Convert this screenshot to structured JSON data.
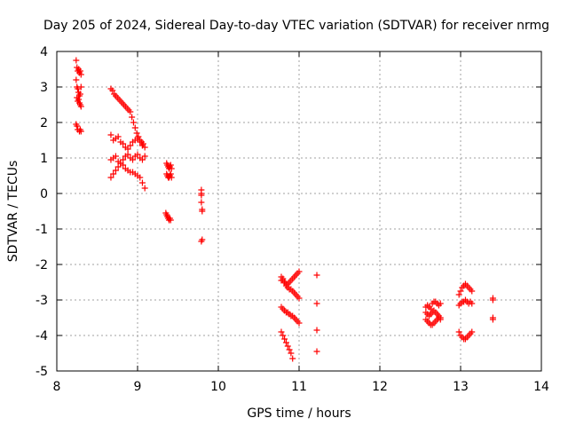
{
  "chart_data": {
    "type": "scatter",
    "title": "Day 205 of 2024, Sidereal Day-to-day VTEC variation (SDTVAR) for receiver nrmg",
    "xlabel": "GPS time / hours",
    "ylabel": "SDTVAR / TECUs",
    "xlim": [
      8,
      14
    ],
    "ylim": [
      -5,
      4
    ],
    "xticks": [
      "8",
      "9",
      "10",
      "11",
      "12",
      "13",
      "14"
    ],
    "yticks": [
      "4",
      "3",
      "2",
      "1",
      "0",
      "-1",
      "-2",
      "-3",
      "-4",
      "-5"
    ],
    "grid": true,
    "marker": "+",
    "color": "#ff0000",
    "series": [
      {
        "name": "SDTVAR",
        "x": [
          8.24,
          8.25,
          8.26,
          8.27,
          8.28,
          8.29,
          8.3,
          8.24,
          8.25,
          8.26,
          8.27,
          8.28,
          8.29,
          8.3,
          8.25,
          8.26,
          8.27,
          8.28,
          8.29,
          8.3,
          8.24,
          8.25,
          8.26,
          8.28,
          8.29,
          8.3,
          8.67,
          8.69,
          8.71,
          8.73,
          8.75,
          8.77,
          8.79,
          8.81,
          8.83,
          8.85,
          8.87,
          8.89,
          8.91,
          8.93,
          8.95,
          8.97,
          8.99,
          9.01,
          9.03,
          9.05,
          9.07,
          8.67,
          8.7,
          8.73,
          8.76,
          8.79,
          8.82,
          8.85,
          8.88,
          8.91,
          8.94,
          8.97,
          9.0,
          9.03,
          9.06,
          9.09,
          8.67,
          8.7,
          8.73,
          8.76,
          8.79,
          8.82,
          8.85,
          8.88,
          8.91,
          8.94,
          8.97,
          9.0,
          9.03,
          9.06,
          9.09,
          8.67,
          8.7,
          8.73,
          8.76,
          8.79,
          8.82,
          8.85,
          8.88,
          8.91,
          8.94,
          8.97,
          9.0,
          9.03,
          9.06,
          9.09,
          9.36,
          9.37,
          9.38,
          9.39,
          9.4,
          9.41,
          9.42,
          9.36,
          9.37,
          9.38,
          9.39,
          9.4,
          9.41,
          9.42,
          9.35,
          9.36,
          9.37,
          9.38,
          9.39,
          9.4,
          9.41,
          9.79,
          9.79,
          9.79,
          9.79,
          9.8,
          9.8,
          9.8,
          9.79,
          10.78,
          10.8,
          10.82,
          10.84,
          10.86,
          10.88,
          10.9,
          10.92,
          10.94,
          10.96,
          10.98,
          11.0,
          10.78,
          10.8,
          10.82,
          10.84,
          10.86,
          10.88,
          10.9,
          10.92,
          10.94,
          10.96,
          10.98,
          11.0,
          10.78,
          10.8,
          10.82,
          10.84,
          10.86,
          10.88,
          10.9,
          10.92,
          10.94,
          10.96,
          10.98,
          11.0,
          10.78,
          10.8,
          10.82,
          10.84,
          10.86,
          10.88,
          10.9,
          10.92,
          11.22,
          11.22,
          11.22,
          11.22,
          12.57,
          12.59,
          12.61,
          12.63,
          12.65,
          12.67,
          12.69,
          12.71,
          12.73,
          12.75,
          12.57,
          12.59,
          12.61,
          12.63,
          12.65,
          12.67,
          12.69,
          12.71,
          12.73,
          12.75,
          12.57,
          12.59,
          12.61,
          12.63,
          12.65,
          12.67,
          12.69,
          12.71,
          12.73,
          12.75,
          12.98,
          13.0,
          13.02,
          13.04,
          13.06,
          13.08,
          13.1,
          13.12,
          13.14,
          12.98,
          13.0,
          13.02,
          13.04,
          13.06,
          13.08,
          13.1,
          13.12,
          13.14,
          12.98,
          13.0,
          13.02,
          13.04,
          13.06,
          13.08,
          13.1,
          13.12,
          13.14,
          13.4,
          13.4,
          13.4,
          13.4
        ],
        "y": [
          3.75,
          3.55,
          3.45,
          3.5,
          3.4,
          3.45,
          3.35,
          3.2,
          3.0,
          2.95,
          2.85,
          2.75,
          2.8,
          3.0,
          2.7,
          2.6,
          2.65,
          2.55,
          2.5,
          2.45,
          1.95,
          1.9,
          1.8,
          1.75,
          1.8,
          1.75,
          2.95,
          2.9,
          2.8,
          2.75,
          2.7,
          2.65,
          2.6,
          2.55,
          2.5,
          2.45,
          2.4,
          2.35,
          2.3,
          2.15,
          2.0,
          1.85,
          1.7,
          1.6,
          1.5,
          1.45,
          1.4,
          1.65,
          1.5,
          1.55,
          1.6,
          1.45,
          1.4,
          1.3,
          1.25,
          1.35,
          1.45,
          1.5,
          1.55,
          1.45,
          1.35,
          1.3,
          0.95,
          1.0,
          1.05,
          0.9,
          0.85,
          0.95,
          1.05,
          1.1,
          1.0,
          0.95,
          1.05,
          1.1,
          1.0,
          0.95,
          1.05,
          0.45,
          0.55,
          0.65,
          0.75,
          0.85,
          0.8,
          0.7,
          0.65,
          0.6,
          0.6,
          0.55,
          0.5,
          0.45,
          0.3,
          0.15,
          0.85,
          0.8,
          0.75,
          0.7,
          0.75,
          0.8,
          0.7,
          0.55,
          0.5,
          0.45,
          0.45,
          0.5,
          0.55,
          0.45,
          -0.55,
          -0.6,
          -0.65,
          -0.7,
          -0.75,
          -0.7,
          -0.75,
          0.1,
          0.0,
          -0.05,
          -0.25,
          -0.45,
          -0.5,
          -1.3,
          -1.35,
          -2.35,
          -2.45,
          -2.5,
          -2.55,
          -2.55,
          -2.5,
          -2.45,
          -2.4,
          -2.35,
          -2.3,
          -2.25,
          -2.2,
          -2.45,
          -2.4,
          -2.5,
          -2.6,
          -2.65,
          -2.7,
          -2.7,
          -2.75,
          -2.8,
          -2.85,
          -2.9,
          -2.95,
          -3.2,
          -3.25,
          -3.3,
          -3.35,
          -3.35,
          -3.4,
          -3.45,
          -3.45,
          -3.5,
          -3.55,
          -3.6,
          -3.65,
          -3.9,
          -4.0,
          -4.1,
          -4.2,
          -4.3,
          -4.4,
          -4.5,
          -4.65,
          -2.3,
          -3.1,
          -3.85,
          -4.45,
          -3.2,
          -3.15,
          -3.2,
          -3.25,
          -3.1,
          -3.05,
          -3.05,
          -3.1,
          -3.15,
          -3.1,
          -3.35,
          -3.4,
          -3.45,
          -3.4,
          -3.35,
          -3.3,
          -3.35,
          -3.4,
          -3.45,
          -3.5,
          -3.55,
          -3.6,
          -3.65,
          -3.7,
          -3.7,
          -3.65,
          -3.6,
          -3.55,
          -3.5,
          -3.55,
          -3.15,
          -3.1,
          -3.05,
          -3.05,
          -3.0,
          -3.05,
          -3.1,
          -3.05,
          -3.1,
          -2.85,
          -2.75,
          -2.65,
          -2.6,
          -2.55,
          -2.6,
          -2.65,
          -2.7,
          -2.75,
          -3.9,
          -4.0,
          -4.05,
          -4.1,
          -4.1,
          -4.05,
          -4.0,
          -3.95,
          -3.9,
          -2.95,
          -3.0,
          -3.5,
          -3.55
        ]
      }
    ]
  }
}
